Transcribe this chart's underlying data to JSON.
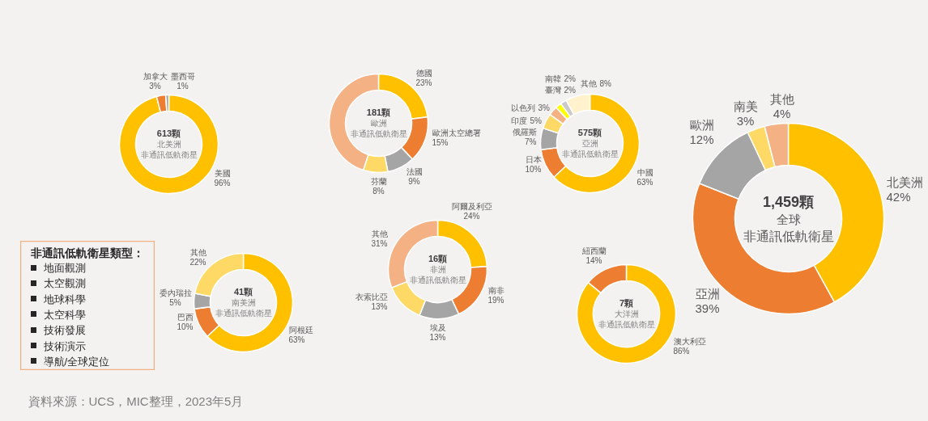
{
  "chart_data": [
    {
      "type": "donut",
      "title": "613顆",
      "subtitle": "北美洲",
      "annotations": [
        "非通訊低軌衛星"
      ],
      "categories": [
        "美國",
        "加拿大",
        "墨西哥"
      ],
      "values": [
        96,
        3,
        1
      ],
      "value_labels": [
        "96%",
        "3%",
        "1%"
      ],
      "colors": [
        "#ffc000",
        "#ed7d31",
        "#a5a5a5"
      ]
    },
    {
      "type": "donut",
      "title": "181顆",
      "subtitle": "歐洲",
      "annotations": [
        "非通訊低軌衛星"
      ],
      "categories": [
        "德國",
        "歐洲太空總署",
        "法國",
        "芬蘭",
        null
      ],
      "values": [
        23,
        15,
        9,
        8,
        45
      ],
      "value_labels": [
        "23%",
        "15%",
        "9%",
        "8%",
        null
      ],
      "colors": [
        "#ffc000",
        "#ed7d31",
        "#a5a5a5",
        "#ffd966",
        "#f4b183"
      ]
    },
    {
      "type": "donut",
      "title": "575顆",
      "subtitle": "亞洲",
      "annotations": [
        "非通訊低軌衛星"
      ],
      "categories": [
        "中國",
        "日本",
        "俄羅斯",
        "印度",
        "以色列",
        "臺灣",
        "南韓",
        "其他"
      ],
      "values": [
        63,
        10,
        7,
        5,
        3,
        2,
        2,
        8
      ],
      "value_labels": [
        "63%",
        "10%",
        "7%",
        "5%",
        "3%",
        "2%",
        "2%",
        "8%"
      ],
      "colors": [
        "#ffc000",
        "#ed7d31",
        "#a5a5a5",
        "#ffd966",
        "#f4b183",
        "#ffff00",
        "#c9c9c9",
        "#fff2cc"
      ]
    },
    {
      "type": "donut",
      "title": "1,459顆",
      "subtitle": "全球",
      "annotations": [
        "非通訊低軌衛星"
      ],
      "categories": [
        "北美洲",
        "亞洲",
        "歐洲",
        "南美",
        "其他"
      ],
      "values": [
        42,
        39,
        12,
        3,
        4
      ],
      "value_labels": [
        "42%",
        "39%",
        "12%",
        "3%",
        "4%"
      ],
      "colors": [
        "#ffc000",
        "#ed7d31",
        "#a5a5a5",
        "#ffd966",
        "#f4b183"
      ]
    },
    {
      "type": "donut",
      "title": "41顆",
      "subtitle": "南美洲",
      "annotations": [
        "非通訊低軌衛星"
      ],
      "categories": [
        "阿根廷",
        "巴西",
        "委內瑞拉",
        "其他"
      ],
      "values": [
        63,
        10,
        5,
        22
      ],
      "value_labels": [
        "63%",
        "10%",
        "5%",
        "22%"
      ],
      "colors": [
        "#ffc000",
        "#ed7d31",
        "#a5a5a5",
        "#ffd966"
      ]
    },
    {
      "type": "donut",
      "title": "16顆",
      "subtitle": "非洲",
      "annotations": [
        "非通訊低軌衛星"
      ],
      "categories": [
        "阿爾及利亞",
        "南非",
        "埃及",
        "衣索比亞",
        "其他"
      ],
      "values": [
        24,
        19,
        13,
        13,
        31
      ],
      "value_labels": [
        "24%",
        "19%",
        "13%",
        "13%",
        "31%"
      ],
      "colors": [
        "#ffc000",
        "#ed7d31",
        "#a5a5a5",
        "#ffd966",
        "#f4b183"
      ]
    },
    {
      "type": "donut",
      "title": "7顆",
      "subtitle": "大洋洲",
      "annotations": [
        "非通訊低軌衛星"
      ],
      "categories": [
        "澳大利亞",
        "紐西蘭"
      ],
      "values": [
        86,
        14
      ],
      "value_labels": [
        "86%",
        "14%"
      ],
      "colors": [
        "#ffc000",
        "#ed7d31"
      ]
    },
    {
      "type": "other",
      "title": "非通訊低軌衛星類型：",
      "annotations": [
        "地面觀測",
        "太空觀測",
        "地球科學",
        "太空科學",
        "技術發展",
        "技術演示",
        "導航/全球定位"
      ]
    },
    {
      "type": "other",
      "annotations": [
        "資料來源：UCS，MIC整理，2023年5月"
      ]
    }
  ]
}
